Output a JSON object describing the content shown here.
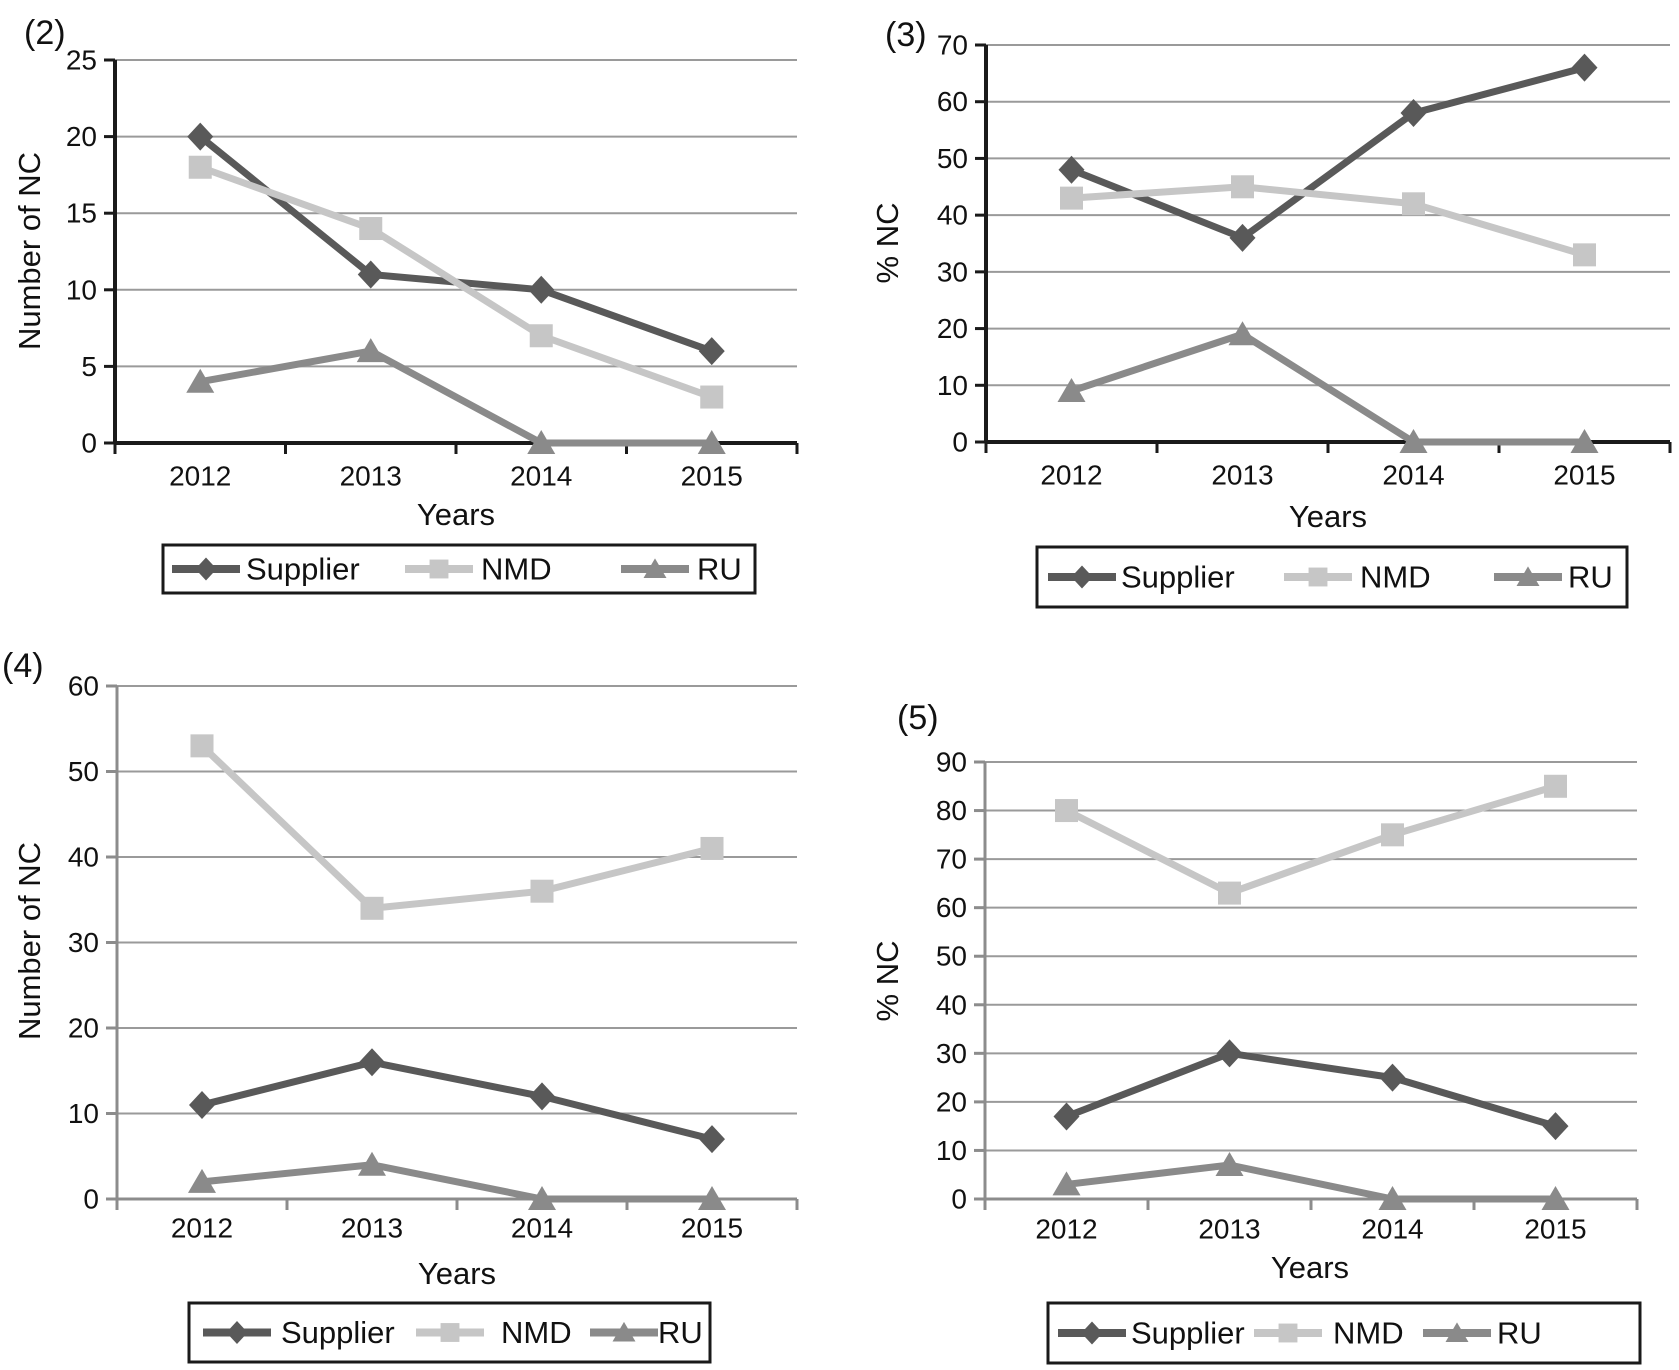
{
  "figure_title": "",
  "palette": {
    "background": "#ffffff",
    "gridline": "#9a9a9a",
    "axis_dark": "#1a1a1a",
    "axis_gray": "#8c8c8c",
    "text": "#111111",
    "legend_border": "#1a1a1a",
    "supplier": "#595959",
    "nmd": "#c6c6c6",
    "ru": "#8a8a8a"
  },
  "chart_data": [
    {
      "type": "line",
      "panel_label": "(2)",
      "xlabel": "Years",
      "ylabel": "Number of NC",
      "ylim": [
        0,
        25
      ],
      "ytick_step": 5,
      "grid": true,
      "legend_position": "bottom",
      "axis_color": "#1a1a1a",
      "categories": [
        "2012",
        "2013",
        "2014",
        "2015"
      ],
      "series": [
        {
          "name": "Supplier",
          "marker": "diamond",
          "color": "#595959",
          "values": [
            20,
            11,
            10,
            6
          ]
        },
        {
          "name": "NMD",
          "marker": "square",
          "color": "#c6c6c6",
          "values": [
            18,
            14,
            7,
            3
          ]
        },
        {
          "name": "RU",
          "marker": "triangle",
          "color": "#8a8a8a",
          "values": [
            4,
            6,
            0,
            0
          ]
        }
      ]
    },
    {
      "type": "line",
      "panel_label": "(3)",
      "xlabel": "Years",
      "ylabel": "% NC",
      "ylim": [
        0,
        70
      ],
      "ytick_step": 10,
      "grid": true,
      "legend_position": "bottom",
      "axis_color": "#1a1a1a",
      "categories": [
        "2012",
        "2013",
        "2014",
        "2015"
      ],
      "series": [
        {
          "name": "Supplier",
          "marker": "diamond",
          "color": "#595959",
          "values": [
            48,
            36,
            58,
            66
          ]
        },
        {
          "name": "NMD",
          "marker": "square",
          "color": "#c6c6c6",
          "values": [
            43,
            45,
            42,
            33
          ]
        },
        {
          "name": "RU",
          "marker": "triangle",
          "color": "#8a8a8a",
          "values": [
            9,
            19,
            0,
            0
          ]
        }
      ]
    },
    {
      "type": "line",
      "panel_label": "(4)",
      "xlabel": "Years",
      "ylabel": "Number of NC",
      "ylim": [
        0,
        60
      ],
      "ytick_step": 10,
      "grid": true,
      "legend_position": "bottom",
      "axis_color": "#8c8c8c",
      "categories": [
        "2012",
        "2013",
        "2014",
        "2015"
      ],
      "series": [
        {
          "name": "Supplier",
          "marker": "diamond",
          "color": "#595959",
          "values": [
            11,
            16,
            12,
            7
          ]
        },
        {
          "name": "NMD",
          "marker": "square",
          "color": "#c6c6c6",
          "values": [
            53,
            34,
            36,
            41
          ]
        },
        {
          "name": "RU",
          "marker": "triangle",
          "color": "#8a8a8a",
          "values": [
            2,
            4,
            0,
            0
          ]
        }
      ]
    },
    {
      "type": "line",
      "panel_label": "(5)",
      "xlabel": "Years",
      "ylabel": "% NC",
      "ylim": [
        0,
        90
      ],
      "ytick_step": 10,
      "grid": true,
      "legend_position": "bottom",
      "axis_color": "#8c8c8c",
      "categories": [
        "2012",
        "2013",
        "2014",
        "2015"
      ],
      "series": [
        {
          "name": "Supplier",
          "marker": "diamond",
          "color": "#595959",
          "values": [
            17,
            30,
            25,
            15
          ]
        },
        {
          "name": "NMD",
          "marker": "square",
          "color": "#c6c6c6",
          "values": [
            80,
            63,
            75,
            85
          ]
        },
        {
          "name": "RU",
          "marker": "triangle",
          "color": "#8a8a8a",
          "values": [
            3,
            7,
            0,
            0
          ]
        }
      ]
    }
  ]
}
